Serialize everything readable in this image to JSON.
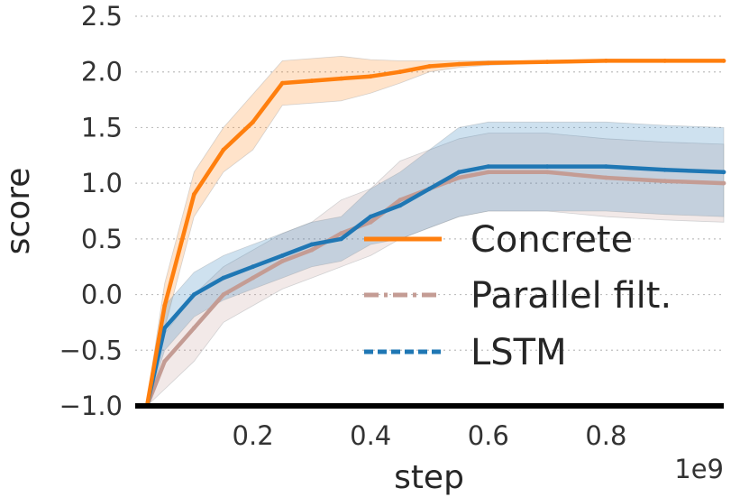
{
  "chart_data": {
    "type": "line",
    "title": "",
    "xlabel": "step",
    "ylabel": "score",
    "x_offset_label": "1e9",
    "xlim": [
      0.0,
      1.0
    ],
    "ylim": [
      -1.0,
      2.5
    ],
    "xticks": [
      0.2,
      0.4,
      0.6,
      0.8
    ],
    "xtick_labels": [
      "0.2",
      "0.4",
      "0.6",
      "0.8"
    ],
    "yticks": [
      -1.0,
      -0.5,
      0.0,
      0.5,
      1.0,
      1.5,
      2.0,
      2.5
    ],
    "ytick_labels": [
      "−1.0",
      "−0.5",
      "0.0",
      "0.5",
      "1.0",
      "1.5",
      "2.0",
      "2.5"
    ],
    "grid": "horizontal dotted",
    "legend_position": "lower-right",
    "x": [
      0.02,
      0.05,
      0.1,
      0.15,
      0.2,
      0.25,
      0.3,
      0.35,
      0.4,
      0.45,
      0.5,
      0.55,
      0.6,
      0.7,
      0.8,
      0.9,
      1.0
    ],
    "series": [
      {
        "name": "Concrete",
        "color": "#ff7f0e",
        "dash": "solid",
        "values": [
          -1.0,
          -0.1,
          0.9,
          1.3,
          1.55,
          1.9,
          1.92,
          1.94,
          1.96,
          2.0,
          2.05,
          2.07,
          2.08,
          2.09,
          2.1,
          2.1,
          2.1
        ],
        "spread": [
          0.05,
          0.2,
          0.2,
          0.2,
          0.25,
          0.2,
          0.2,
          0.2,
          0.15,
          0.1,
          0.05,
          0.03,
          0.02,
          0.01,
          0.01,
          0.01,
          0.01
        ]
      },
      {
        "name": "Parallel filt.",
        "color": "#c49c94",
        "dash": "dashdot",
        "values": [
          -1.0,
          -0.6,
          -0.3,
          0.0,
          0.15,
          0.3,
          0.4,
          0.55,
          0.65,
          0.85,
          0.95,
          1.05,
          1.1,
          1.1,
          1.05,
          1.02,
          1.0
        ],
        "spread": [
          0.05,
          0.25,
          0.3,
          0.25,
          0.25,
          0.25,
          0.25,
          0.3,
          0.3,
          0.35,
          0.35,
          0.35,
          0.35,
          0.35,
          0.35,
          0.35,
          0.35
        ]
      },
      {
        "name": "LSTM",
        "color": "#1f77b4",
        "dash": "dashed",
        "values": [
          -1.0,
          -0.3,
          0.0,
          0.15,
          0.25,
          0.35,
          0.45,
          0.5,
          0.7,
          0.8,
          0.95,
          1.1,
          1.15,
          1.15,
          1.15,
          1.12,
          1.1
        ],
        "spread": [
          0.05,
          0.2,
          0.2,
          0.2,
          0.2,
          0.2,
          0.2,
          0.2,
          0.25,
          0.3,
          0.35,
          0.4,
          0.4,
          0.4,
          0.4,
          0.4,
          0.4
        ]
      }
    ]
  }
}
